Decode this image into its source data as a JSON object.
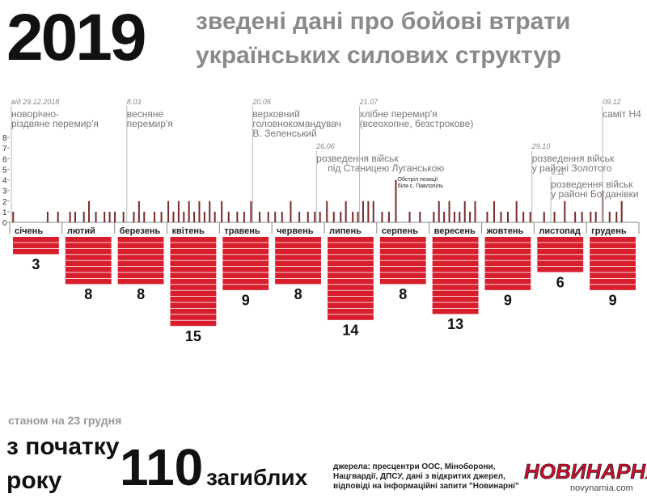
{
  "chart_data": {
    "type": "bar",
    "title": "2019",
    "subtitle": [
      "зведені дані про бойові втрати",
      "українських силових структур"
    ],
    "x": [
      2,
      22,
      28,
      35,
      38,
      43,
      46,
      50,
      55,
      58,
      61,
      66,
      72,
      75,
      78,
      84,
      88,
      92,
      95,
      98,
      101,
      104,
      107,
      110,
      113,
      116,
      119,
      123,
      127,
      132,
      136,
      140,
      145,
      150,
      154,
      158,
      163,
      168,
      173,
      177,
      180,
      184,
      188,
      192,
      195,
      199,
      202,
      205,
      208,
      211,
      216,
      220,
      224,
      232,
      238,
      246,
      249,
      252,
      255,
      258,
      261,
      264,
      267,
      270,
      277,
      281,
      285,
      289,
      294,
      298,
      302,
      310,
      316,
      322,
      328,
      332,
      337,
      340,
      344,
      348,
      352,
      355
    ],
    "values": [
      1,
      1,
      1,
      1,
      1,
      1,
      2,
      1,
      1,
      1,
      1,
      1,
      1,
      2,
      1,
      1,
      1,
      2,
      1,
      2,
      1,
      2,
      1,
      2,
      1,
      2,
      1,
      2,
      1,
      1,
      1,
      2,
      1,
      1,
      1,
      1,
      2,
      1,
      1,
      1,
      1,
      2,
      1,
      1,
      2,
      1,
      1,
      2,
      2,
      2,
      1,
      1,
      4,
      1,
      1,
      1,
      2,
      1,
      2,
      1,
      1,
      2,
      1,
      2,
      1,
      2,
      1,
      1,
      2,
      1,
      1,
      1,
      1,
      2,
      1,
      1,
      1,
      1,
      3,
      1,
      1,
      2
    ],
    "color": "#7a2a2a",
    "xlim": [
      0,
      365
    ],
    "ylim": [
      0,
      8
    ],
    "yticks": [
      0,
      1,
      2,
      3,
      4,
      5,
      6,
      7,
      8
    ],
    "months": [
      "січень",
      "лютий",
      "березень",
      "квітень",
      "травень",
      "червень",
      "липень",
      "серпень",
      "вересень",
      "жовтень",
      "листопад",
      "грудень"
    ],
    "month_deaths": [
      3,
      8,
      8,
      15,
      9,
      8,
      14,
      8,
      13,
      9,
      6,
      9
    ],
    "events": [
      {
        "date": "від 29.12.2018",
        "text": [
          "новорічно-",
          "різдвяне перемир'я"
        ]
      },
      {
        "date": "8.03",
        "text": [
          "весняне",
          "перемир'я"
        ]
      },
      {
        "date": "20.05",
        "text": [
          "верховний",
          "головнокомандувач",
          "В. Зеленський"
        ]
      },
      {
        "date": "26.06",
        "text": [
          "розведення військ",
          "під Станицею Луганською"
        ]
      },
      {
        "date": "21.07",
        "text": [
          "хлібне перемир'я",
          "(всеохопне, безстрокове)"
        ]
      },
      {
        "date": "29.10",
        "text": [
          "розведення військ",
          "у районі Золотого"
        ]
      },
      {
        "date": "9.11",
        "text": [
          "розведення військ",
          "у районі Богданівки"
        ]
      },
      {
        "date": "09.12",
        "text": [
          "саміт Н4"
        ]
      }
    ],
    "annotation": [
      "Обстріл позиції",
      "біля с. Павлопіль"
    ],
    "as_of": "станом на 23 грудня",
    "total_label": [
      "з початку",
      "року"
    ],
    "total": 110,
    "total_unit": "загиблих",
    "sources": [
      "джерела: пресцентри ООС, Міноборони,",
      "Нацгвардії, ДПСУ, дані з відкритих джерел,",
      "відповіді на інформаційні запити \"Новинарні\""
    ],
    "brand": "НОВИНАРНЯ",
    "site": "novynarnia.com"
  }
}
